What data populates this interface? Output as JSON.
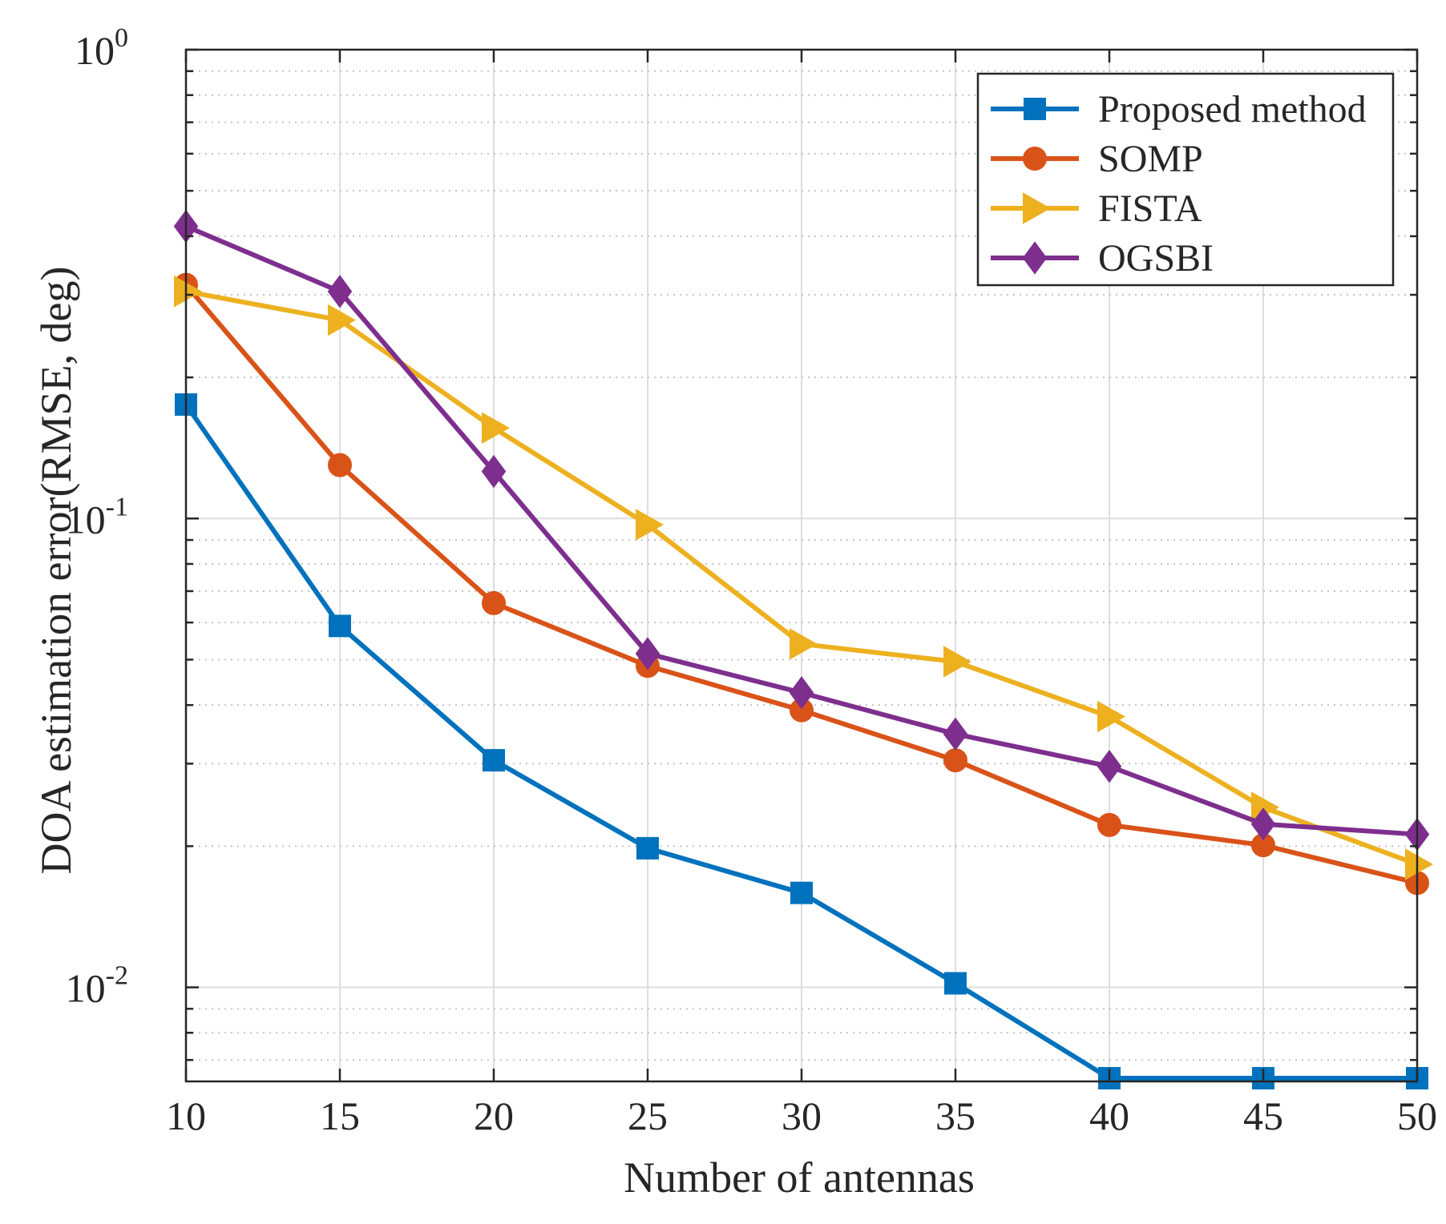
{
  "chart_data": {
    "type": "line",
    "title": "",
    "xlabel": "Number of antennas",
    "ylabel": "DOA estimation error(RMSE, deg)",
    "yscale": "log",
    "xlim": [
      10,
      50
    ],
    "ylim": [
      0.0063,
      1
    ],
    "xticks": [
      10,
      15,
      20,
      25,
      30,
      35,
      40,
      45,
      50
    ],
    "xtick_labels": [
      "10",
      "15",
      "20",
      "25",
      "30",
      "35",
      "40",
      "45",
      "50"
    ],
    "yticks": [
      {
        "value": 0.01,
        "base": "10",
        "exp": "-2"
      },
      {
        "value": 0.1,
        "base": "10",
        "exp": "-1"
      },
      {
        "value": 1,
        "base": "10",
        "exp": "0"
      }
    ],
    "grid": true,
    "legend_position": "top-right",
    "x": [
      10,
      15,
      20,
      25,
      30,
      35,
      40,
      45,
      50
    ],
    "series": [
      {
        "name": "Proposed method",
        "color": "#0072BD",
        "marker": "square",
        "values": [
          0.175,
          0.059,
          0.0305,
          0.0198,
          0.0159,
          0.0102,
          0.0064,
          0.0064,
          0.0064
        ]
      },
      {
        "name": "SOMP",
        "color": "#D95319",
        "marker": "circle",
        "values": [
          0.315,
          0.13,
          0.066,
          0.0485,
          0.039,
          0.0305,
          0.0222,
          0.0201,
          0.0167
        ]
      },
      {
        "name": "FISTA",
        "color": "#EDB120",
        "marker": "triangle-right",
        "values": [
          0.305,
          0.265,
          0.156,
          0.097,
          0.054,
          0.0495,
          0.0378,
          0.0242,
          0.0183
        ]
      },
      {
        "name": "OGSBI",
        "color": "#7E2F8E",
        "marker": "diamond",
        "values": [
          0.42,
          0.305,
          0.126,
          0.0515,
          0.0425,
          0.0347,
          0.0296,
          0.0223,
          0.0212
        ]
      }
    ]
  }
}
